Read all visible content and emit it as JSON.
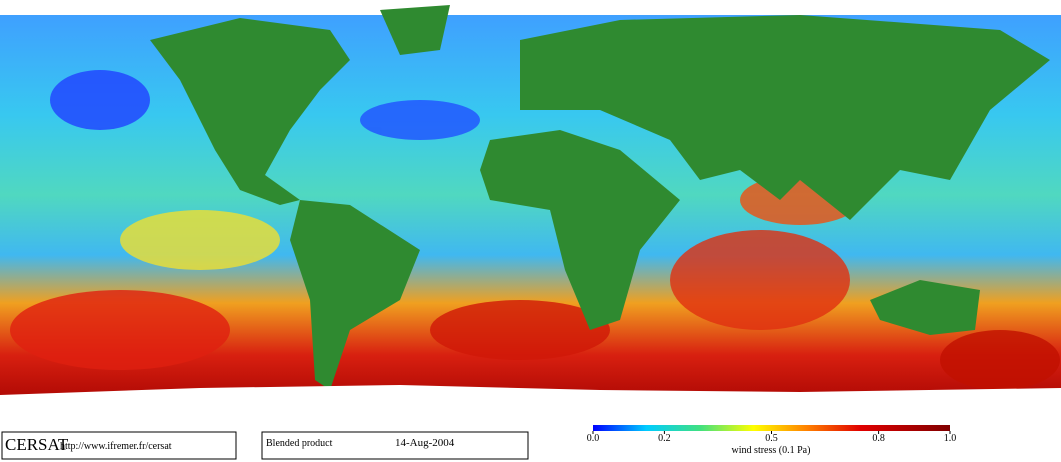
{
  "header": {
    "logo": "CERSAT",
    "url": "http://www.ifremer.fr/cersat",
    "product": "Blended product",
    "date": "14-Aug-2004"
  },
  "colorbar": {
    "label": "wind stress (0.1 Pa)",
    "range": [
      0,
      1
    ],
    "ticks": [
      {
        "value": 0,
        "label": "0.0"
      },
      0.2,
      0.5,
      0.8,
      {
        "value": 1,
        "label": "1.0"
      }
    ]
  }
}
